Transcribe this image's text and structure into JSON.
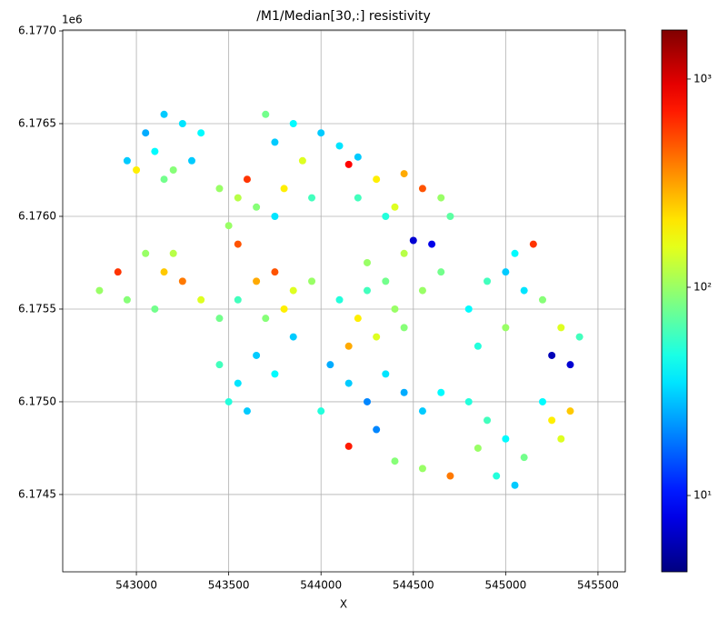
{
  "chart_data": {
    "type": "scatter",
    "title": "/M1/Median[30,:] resistivity",
    "x_label": "X",
    "y_offset_text": "1e6",
    "xlim": [
      542601,
      545648
    ],
    "ylim": [
      6174083,
      6177005
    ],
    "xticks": [
      543000,
      543500,
      544000,
      544500,
      545000,
      545500
    ],
    "yticks": [
      {
        "value": 6174500,
        "label": "6.1745"
      },
      {
        "value": 6175000,
        "label": "6.1750"
      },
      {
        "value": 6175500,
        "label": "6.1755"
      },
      {
        "value": 6176000,
        "label": "6.1760"
      },
      {
        "value": 6176500,
        "label": "6.1765"
      },
      {
        "value": 6177000,
        "label": "6.1770"
      }
    ],
    "grid": true,
    "colorbar": {
      "scale": "log",
      "colormap": "jet",
      "lim": [
        4.3,
        1720
      ],
      "ticks": [
        {
          "value": 10,
          "label": "10¹"
        },
        {
          "value": 100,
          "label": "10²"
        },
        {
          "value": 1000,
          "label": "10³"
        }
      ]
    },
    "x": [
      542950,
      543050,
      543150,
      543250,
      543350,
      543000,
      543100,
      543200,
      543300,
      543150,
      543450,
      543550,
      543600,
      543650,
      543500,
      543550,
      543700,
      543750,
      543850,
      543900,
      543950,
      543800,
      543750,
      544000,
      544100,
      544200,
      544150,
      544200,
      544300,
      544400,
      544450,
      544550,
      544650,
      544700,
      544350,
      542800,
      542900,
      542950,
      543050,
      543150,
      543250,
      543350,
      543100,
      543200,
      543450,
      543550,
      543650,
      543750,
      543850,
      543950,
      543700,
      543800,
      543450,
      543550,
      543650,
      543750,
      543850,
      543600,
      543500,
      544100,
      544200,
      544300,
      544400,
      544250,
      544150,
      544450,
      544050,
      544150,
      544250,
      544350,
      544450,
      544550,
      544650,
      544000,
      544300,
      544250,
      544350,
      544450,
      544550,
      544650,
      544600,
      544500,
      544800,
      544900,
      545000,
      545100,
      545200,
      545300,
      545400,
      545050,
      545150,
      545000,
      544850,
      545250,
      545350,
      545200,
      545250,
      545300,
      545350,
      544800,
      544900,
      545000,
      545100,
      544950,
      545050,
      544850,
      544400,
      544550,
      544700,
      544150
    ],
    "y": [
      6176300,
      6176450,
      6176550,
      6176500,
      6176450,
      6176250,
      6176350,
      6176250,
      6176300,
      6176200,
      6176150,
      6176100,
      6176200,
      6176050,
      6175950,
      6175850,
      6176550,
      6176400,
      6176500,
      6176300,
      6176100,
      6176150,
      6176000,
      6176450,
      6176380,
      6176320,
      6176280,
      6176100,
      6176200,
      6176050,
      6176230,
      6176150,
      6176100,
      6176000,
      6176000,
      6175600,
      6175700,
      6175550,
      6175800,
      6175700,
      6175650,
      6175550,
      6175500,
      6175800,
      6175450,
      6175550,
      6175650,
      6175700,
      6175600,
      6175650,
      6175450,
      6175500,
      6175200,
      6175100,
      6175250,
      6175150,
      6175350,
      6174950,
      6175000,
      6175550,
      6175450,
      6175350,
      6175500,
      6175600,
      6175300,
      6175400,
      6175200,
      6175100,
      6175000,
      6175150,
      6175050,
      6174950,
      6175050,
      6174950,
      6174850,
      6175750,
      6175650,
      6175800,
      6175600,
      6175700,
      6175850,
      6175870,
      6175500,
      6175650,
      6175700,
      6175600,
      6175550,
      6175400,
      6175350,
      6175800,
      6175850,
      6175400,
      6175300,
      6175250,
      6175200,
      6175000,
      6174900,
      6174800,
      6174950,
      6175000,
      6174900,
      6174800,
      6174700,
      6174600,
      6174550,
      6174750,
      6174680,
      6174640,
      6174600,
      6174760
    ],
    "values": [
      30,
      25,
      30,
      35,
      40,
      200,
      40,
      90,
      30,
      80,
      100,
      120,
      600,
      90,
      100,
      500,
      80,
      30,
      40,
      150,
      60,
      200,
      35,
      30,
      35,
      30,
      800,
      60,
      200,
      150,
      300,
      500,
      100,
      70,
      50,
      100,
      600,
      90,
      100,
      250,
      400,
      150,
      80,
      120,
      80,
      60,
      300,
      500,
      150,
      100,
      90,
      200,
      60,
      35,
      30,
      40,
      30,
      30,
      50,
      50,
      200,
      150,
      100,
      60,
      300,
      90,
      25,
      30,
      20,
      35,
      25,
      30,
      40,
      50,
      20,
      100,
      80,
      120,
      100,
      80,
      8,
      7,
      40,
      60,
      30,
      35,
      90,
      150,
      60,
      40,
      600,
      100,
      50,
      6,
      7,
      40,
      200,
      150,
      250,
      50,
      60,
      40,
      80,
      50,
      30,
      100,
      90,
      100,
      400,
      700
    ]
  }
}
